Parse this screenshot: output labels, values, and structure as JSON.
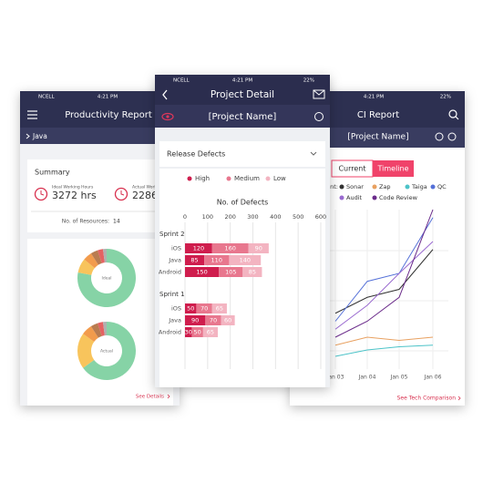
{
  "left_phone": {
    "status": {
      "carrier": "NCELL",
      "time": "4:21 PM"
    },
    "title": "Productivity Report",
    "breadcrumb": "Java",
    "summary": {
      "title": "Summary",
      "ideal_label": "Ideal Working Hours",
      "ideal_value": "3272 hrs",
      "actual_label": "Actual Working",
      "actual_value": "2286",
      "resources_label": "No. of Resources:",
      "resources_value": 14
    },
    "charts": [
      {
        "type": "pie",
        "center_label": "Ideal",
        "values": [
          78,
          8,
          5,
          4,
          3,
          2
        ],
        "colors": [
          "#86d3a6",
          "#f8c45c",
          "#f29b4c",
          "#b97c50",
          "#e46262",
          "#b0b0b0"
        ]
      },
      {
        "type": "pie",
        "center_label": "Actual",
        "values": [
          65,
          20,
          6,
          4,
          3,
          2
        ],
        "colors": [
          "#86d3a6",
          "#f8c45c",
          "#f29b4c",
          "#b97c50",
          "#e46262",
          "#b0b0b0"
        ]
      }
    ],
    "link": "See Details"
  },
  "center_phone": {
    "status": {
      "carrier": "NCELL",
      "time": "4:21 PM",
      "battery": "22%"
    },
    "title": "Project Detail",
    "project": "[Project Name]",
    "dropdown": "Release Defects",
    "chart": {
      "type": "bar",
      "title": "No. of Defects",
      "legend": [
        {
          "name": "High",
          "color": "#cf1d4d"
        },
        {
          "name": "Medium",
          "color": "#e8778e"
        },
        {
          "name": "Low",
          "color": "#f3b4c1"
        }
      ],
      "groups": [
        {
          "name": "Sprint 2",
          "categories": [
            "iOS",
            "Java",
            "Android"
          ],
          "values": [
            [
              120,
              160,
              90
            ],
            [
              85,
              110,
              140
            ],
            [
              150,
              105,
              85
            ]
          ]
        },
        {
          "name": "Sprint 1",
          "categories": [
            "iOS",
            "Java",
            "Android"
          ],
          "values": [
            [
              50,
              70,
              65
            ],
            [
              90,
              70,
              60
            ],
            [
              30,
              50,
              65
            ]
          ]
        }
      ],
      "xlim": [
        0,
        600
      ],
      "xticks": [
        0,
        100,
        200,
        300,
        400,
        500,
        600
      ],
      "grid": true
    }
  },
  "right_phone": {
    "status": {
      "carrier": "NCELL",
      "time": "4:21 PM",
      "battery": "22%"
    },
    "title": "CI Report",
    "project": "[Project Name]",
    "tabs": [
      "Current",
      "Timeline"
    ],
    "legend_title": "Component:",
    "chart": {
      "type": "line",
      "x": [
        "Jan 03",
        "Jan 04",
        "Jan 05",
        "Jan 06"
      ],
      "ylim": [
        0,
        100
      ],
      "series": [
        {
          "name": "Sonar",
          "color": "#333333",
          "values": [
            35,
            45,
            50,
            75
          ]
        },
        {
          "name": "Zap",
          "color": "#e8a060",
          "values": [
            15,
            20,
            18,
            20
          ]
        },
        {
          "name": "Taiga",
          "color": "#4cc3c8",
          "values": [
            8,
            12,
            14,
            15
          ]
        },
        {
          "name": "QC",
          "color": "#5470d8",
          "values": [
            30,
            55,
            60,
            95
          ]
        },
        {
          "name": "Audit",
          "color": "#9a6ad0",
          "values": [
            25,
            40,
            60,
            80
          ]
        },
        {
          "name": "Code Review",
          "color": "#6a2a8a",
          "values": [
            20,
            30,
            45,
            100
          ]
        }
      ]
    },
    "link": "See Tech Comparison"
  }
}
